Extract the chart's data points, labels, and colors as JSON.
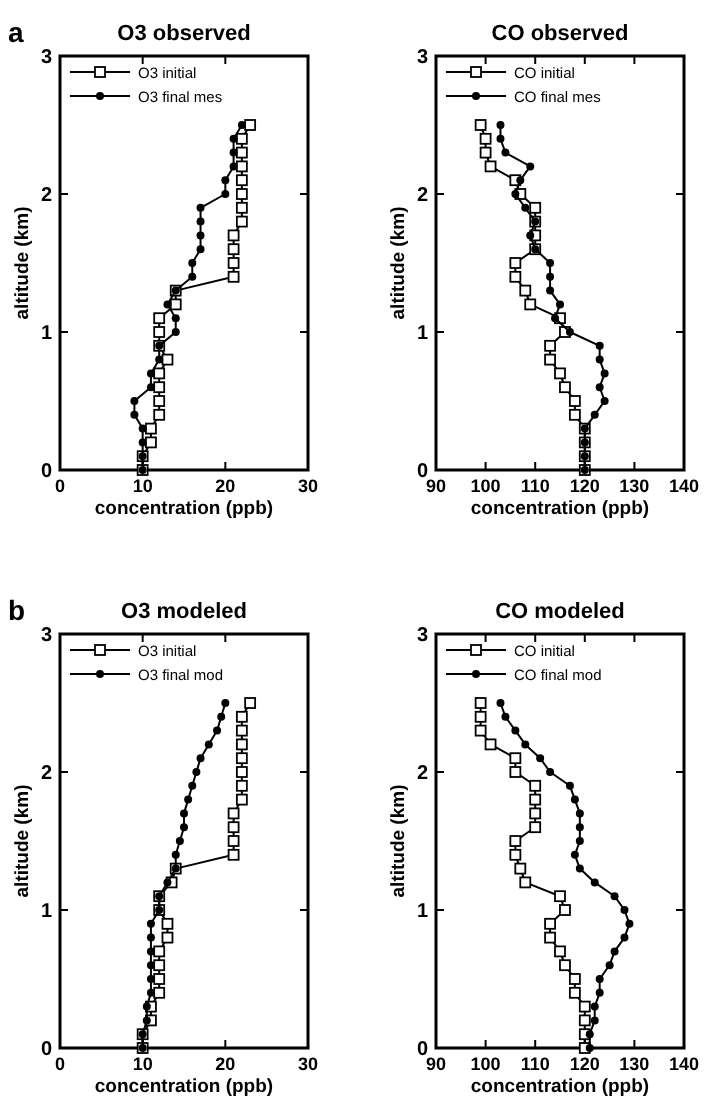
{
  "chart_data": [
    {
      "type": "line",
      "title": "O3 observed",
      "xlabel": "concentration (ppb)",
      "ylabel": "altitude (km)",
      "annotations": [
        "a"
      ],
      "xlim": [
        0,
        30
      ],
      "xticks": [
        0,
        10,
        20,
        30
      ],
      "ylim": [
        0,
        3
      ],
      "yticks": [
        0,
        1,
        2,
        3
      ],
      "legend": "top left",
      "series": [
        {
          "name": "O3 initial",
          "color": "#000000",
          "marker": "square",
          "x": [
            10,
            10,
            11,
            11,
            12,
            12,
            12,
            12,
            13,
            12,
            12,
            12,
            14,
            14,
            21,
            21,
            21,
            21,
            22,
            22,
            22,
            22,
            22,
            22,
            22,
            23
          ],
          "values": [
            0,
            0.1,
            0.2,
            0.3,
            0.4,
            0.5,
            0.6,
            0.7,
            0.8,
            0.9,
            1,
            1.1,
            1.2,
            1.3,
            1.4,
            1.5,
            1.6,
            1.7,
            1.8,
            1.9,
            2,
            2.1,
            2.2,
            2.3,
            2.4,
            2.5
          ]
        },
        {
          "name": "O3 final mes",
          "color": "#000000",
          "marker": "circle",
          "x": [
            10,
            10,
            10,
            10,
            9,
            9,
            11,
            11,
            12,
            12,
            14,
            14,
            13,
            14,
            16,
            16,
            17,
            17,
            17,
            17,
            20,
            20,
            21,
            21,
            21,
            22
          ],
          "values": [
            0,
            0.1,
            0.2,
            0.3,
            0.4,
            0.5,
            0.6,
            0.7,
            0.8,
            0.9,
            1,
            1.1,
            1.2,
            1.3,
            1.4,
            1.5,
            1.6,
            1.7,
            1.8,
            1.9,
            2,
            2.1,
            2.2,
            2.3,
            2.4,
            2.5
          ]
        }
      ]
    },
    {
      "type": "line",
      "title": "CO observed",
      "xlabel": "concentration (ppb)",
      "ylabel": "altitude (km)",
      "xlim": [
        90,
        140
      ],
      "xticks": [
        90,
        100,
        110,
        120,
        130,
        140
      ],
      "ylim": [
        0,
        3
      ],
      "yticks": [
        0,
        1,
        2,
        3
      ],
      "legend": "top left",
      "series": [
        {
          "name": "CO initial",
          "color": "#000000",
          "marker": "square",
          "x": [
            120,
            120,
            120,
            120,
            118,
            118,
            116,
            115,
            113,
            113,
            116,
            115,
            109,
            108,
            106,
            106,
            110,
            110,
            110,
            110,
            107,
            106,
            101,
            100,
            100,
            99
          ],
          "values": [
            0,
            0.1,
            0.2,
            0.3,
            0.4,
            0.5,
            0.6,
            0.7,
            0.8,
            0.9,
            1,
            1.1,
            1.2,
            1.3,
            1.4,
            1.5,
            1.6,
            1.7,
            1.8,
            1.9,
            2,
            2.1,
            2.2,
            2.3,
            2.4,
            2.5
          ]
        },
        {
          "name": "CO final mes",
          "color": "#000000",
          "marker": "circle",
          "x": [
            120,
            120,
            120,
            120,
            122,
            124,
            123,
            124,
            123,
            123,
            117,
            114,
            115,
            113,
            113,
            113,
            110,
            109,
            110,
            108,
            106,
            107,
            109,
            104,
            103,
            103
          ],
          "values": [
            0,
            0.1,
            0.2,
            0.3,
            0.4,
            0.5,
            0.6,
            0.7,
            0.8,
            0.9,
            1,
            1.1,
            1.2,
            1.3,
            1.4,
            1.5,
            1.6,
            1.7,
            1.8,
            1.9,
            2,
            2.1,
            2.2,
            2.3,
            2.4,
            2.5
          ]
        }
      ]
    },
    {
      "type": "line",
      "title": "O3 modeled",
      "xlabel": "concentration (ppb)",
      "ylabel": "altitude (km)",
      "annotations": [
        "b"
      ],
      "xlim": [
        0,
        30
      ],
      "xticks": [
        0,
        10,
        20,
        30
      ],
      "ylim": [
        0,
        3
      ],
      "yticks": [
        0,
        1,
        2,
        3
      ],
      "legend": "top left",
      "series": [
        {
          "name": "O3 initial",
          "color": "#000000",
          "marker": "square",
          "x": [
            10,
            10,
            11,
            11,
            12,
            12,
            12,
            12,
            13,
            13,
            12,
            12,
            13.5,
            14,
            21,
            21,
            21,
            21,
            22,
            22,
            22,
            22,
            22,
            22,
            22,
            23
          ],
          "values": [
            0,
            0.1,
            0.2,
            0.3,
            0.4,
            0.5,
            0.6,
            0.7,
            0.8,
            0.9,
            1,
            1.1,
            1.2,
            1.3,
            1.4,
            1.5,
            1.6,
            1.7,
            1.8,
            1.9,
            2,
            2.1,
            2.2,
            2.3,
            2.4,
            2.5
          ]
        },
        {
          "name": "O3 final mod",
          "color": "#000000",
          "marker": "circle",
          "x": [
            10,
            10,
            10.5,
            10.5,
            11,
            11,
            11,
            11,
            11,
            11,
            12,
            12,
            13,
            14,
            14,
            14.5,
            15,
            15,
            15.5,
            16,
            16.5,
            17,
            18,
            19,
            19.5,
            20
          ],
          "values": [
            0,
            0.1,
            0.2,
            0.3,
            0.4,
            0.5,
            0.6,
            0.7,
            0.8,
            0.9,
            1,
            1.1,
            1.2,
            1.3,
            1.4,
            1.5,
            1.6,
            1.7,
            1.8,
            1.9,
            2,
            2.1,
            2.2,
            2.3,
            2.4,
            2.5
          ]
        }
      ]
    },
    {
      "type": "line",
      "title": "CO modeled",
      "xlabel": "concentration (ppb)",
      "ylabel": "altitude (km)",
      "xlim": [
        90,
        140
      ],
      "xticks": [
        90,
        100,
        110,
        120,
        130,
        140
      ],
      "ylim": [
        0,
        3
      ],
      "yticks": [
        0,
        1,
        2,
        3
      ],
      "legend": "top left",
      "series": [
        {
          "name": "CO initial",
          "color": "#000000",
          "marker": "square",
          "x": [
            120,
            120,
            120,
            120,
            118,
            118,
            116,
            115,
            113,
            113,
            116,
            115,
            108,
            107,
            106,
            106,
            110,
            110,
            110,
            110,
            106,
            106,
            101,
            99,
            99,
            99
          ],
          "values": [
            0,
            0.1,
            0.2,
            0.3,
            0.4,
            0.5,
            0.6,
            0.7,
            0.8,
            0.9,
            1,
            1.1,
            1.2,
            1.3,
            1.4,
            1.5,
            1.6,
            1.7,
            1.8,
            1.9,
            2,
            2.1,
            2.2,
            2.3,
            2.4,
            2.5
          ]
        },
        {
          "name": "CO final mod",
          "color": "#000000",
          "marker": "circle",
          "x": [
            121,
            121,
            122,
            122,
            123,
            123,
            125,
            126,
            128,
            129,
            128,
            126,
            122,
            119,
            118,
            119,
            119,
            119,
            118,
            117,
            113,
            111,
            108,
            106,
            104,
            103
          ],
          "values": [
            0,
            0.1,
            0.2,
            0.3,
            0.4,
            0.5,
            0.6,
            0.7,
            0.8,
            0.9,
            1,
            1.1,
            1.2,
            1.3,
            1.4,
            1.5,
            1.6,
            1.7,
            1.8,
            1.9,
            2,
            2.1,
            2.2,
            2.3,
            2.4,
            2.5
          ]
        }
      ]
    }
  ]
}
